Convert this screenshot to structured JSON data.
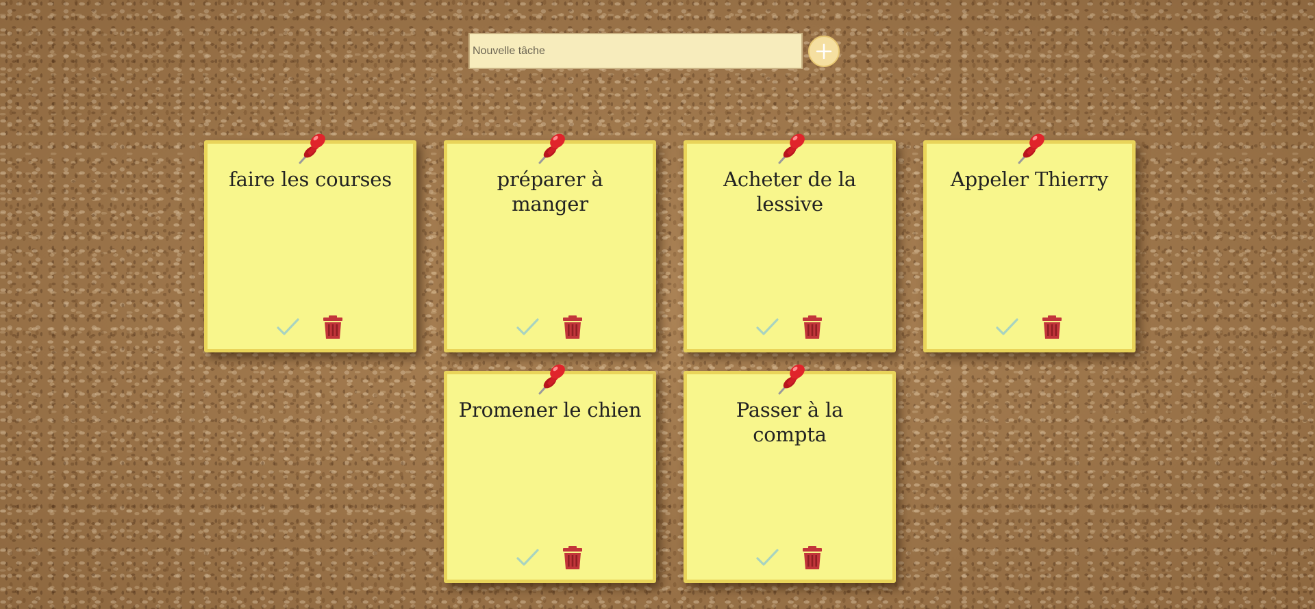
{
  "form": {
    "input_value": "",
    "input_placeholder": "Nouvelle tâche",
    "add_icon": "plus-icon"
  },
  "notes": [
    {
      "text": "faire les courses"
    },
    {
      "text": "préparer à manger"
    },
    {
      "text": "Acheter de la lessive"
    },
    {
      "text": "Appeler Thierry"
    },
    {
      "text": "Promener le chien"
    },
    {
      "text": "Passer à la compta"
    }
  ],
  "icons": {
    "pin": "pushpin-icon",
    "done": "check-icon",
    "delete": "trash-icon"
  },
  "colors": {
    "note_fill": "#f8f68c",
    "note_border": "#e9d45a",
    "check": "#a8d3c0",
    "trash": "#c2353a",
    "pin": "#e0242b",
    "input_bg": "#f7ecbc",
    "add_button": "#f5dfa0"
  }
}
